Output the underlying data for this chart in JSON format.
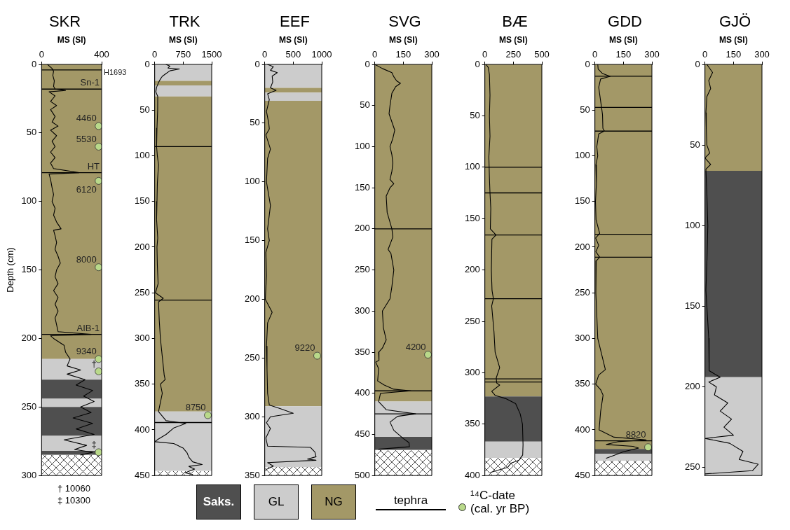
{
  "chart_data": [
    {
      "type": "line",
      "title": "SKR",
      "xlabel": "MS (SI)",
      "ylabel": "Depth (cm)",
      "xlim": [
        0,
        400
      ],
      "xticks": [
        0,
        400
      ],
      "ylim": [
        300,
        0
      ],
      "yticks": [
        0,
        50,
        100,
        150,
        200,
        250,
        300
      ],
      "bands": [
        {
          "axis": "y",
          "from": 0,
          "to": 215,
          "color": "#a39867"
        },
        {
          "axis": "y",
          "from": 215,
          "to": 230,
          "color": "#cccccc"
        },
        {
          "axis": "y",
          "from": 230,
          "to": 244,
          "color": "#4f4f4f"
        },
        {
          "axis": "y",
          "from": 244,
          "to": 250,
          "color": "#cccccc"
        },
        {
          "axis": "y",
          "from": 250,
          "to": 271,
          "color": "#4f4f4f"
        },
        {
          "axis": "y",
          "from": 271,
          "to": 282,
          "color": "#cccccc"
        },
        {
          "axis": "y",
          "from": 282,
          "to": 285,
          "color": "#4f4f4f"
        },
        {
          "axis": "y",
          "from": 285,
          "to": 300,
          "color": "#ffffff"
        }
      ],
      "ref_lines": [
        {
          "axis": "y",
          "value": 4,
          "label": "H1693"
        },
        {
          "axis": "y",
          "value": 18,
          "label": "Sn-1"
        },
        {
          "axis": "y",
          "value": 79,
          "label": "HT"
        },
        {
          "axis": "y",
          "value": 197,
          "label": "AIB-1"
        }
      ],
      "series": [
        {
          "type": "line",
          "color": "#000000",
          "x": [
            40,
            70,
            80,
            75,
            85,
            80,
            90,
            160,
            50,
            90,
            60,
            100,
            60,
            90,
            70,
            110,
            60,
            100,
            70,
            90,
            60,
            90,
            60,
            80,
            250,
            50,
            60,
            70,
            80,
            70,
            90,
            80,
            100,
            130,
            80,
            90,
            100,
            90,
            110,
            125,
            100,
            90,
            110,
            80,
            110,
            90,
            110,
            90,
            100,
            110,
            330,
            60,
            80,
            150,
            160,
            190,
            170,
            260,
            170,
            290,
            230,
            340,
            280,
            350,
            260,
            330,
            210,
            340,
            230,
            350,
            150,
            300,
            220,
            340,
            260
          ],
          "values": [
            0,
            3,
            5,
            8,
            12,
            16,
            18,
            19,
            20,
            23,
            27,
            30,
            33,
            38,
            42,
            45,
            48,
            52,
            56,
            60,
            64,
            68,
            72,
            76,
            79,
            80,
            84,
            90,
            95,
            100,
            105,
            110,
            115,
            120,
            121,
            125,
            130,
            135,
            140,
            145,
            150,
            155,
            160,
            165,
            170,
            175,
            180,
            185,
            190,
            195,
            197,
            198,
            200,
            205,
            210,
            215,
            220,
            223,
            226,
            230,
            234,
            238,
            242,
            246,
            250,
            254,
            258,
            262,
            266,
            270,
            274,
            278,
            281,
            283,
            285
          ]
        },
        {
          "type": "scatter",
          "color": "#b9d98a",
          "x": [
            380,
            380,
            380,
            380,
            380,
            380,
            380
          ],
          "values": [
            45,
            60,
            85,
            148,
            215,
            224,
            283
          ]
        }
      ],
      "annotations": [
        {
          "text": "4460",
          "x": 380,
          "y": 45
        },
        {
          "text": "5530",
          "x": 380,
          "y": 60
        },
        {
          "text": "6120",
          "x": 380,
          "y": 85
        },
        {
          "text": "8000",
          "x": 380,
          "y": 148
        },
        {
          "text": "9340",
          "x": 380,
          "y": 215
        },
        {
          "text": "†",
          "x": 380,
          "y": 224
        },
        {
          "text": "‡",
          "x": 380,
          "y": 283
        },
        "† 10060",
        "‡ 10300"
      ]
    },
    {
      "type": "line",
      "title": "TRK",
      "xlabel": "MS (SI)",
      "xlim": [
        0,
        1500
      ],
      "xticks": [
        0,
        750,
        1500
      ],
      "ylim": [
        450,
        0
      ],
      "yticks": [
        0,
        50,
        100,
        150,
        200,
        250,
        300,
        350,
        400,
        450
      ],
      "bands": [
        {
          "axis": "y",
          "from": 0,
          "to": 18,
          "color": "#cccccc"
        },
        {
          "axis": "y",
          "from": 18,
          "to": 23,
          "color": "#a39867"
        },
        {
          "axis": "y",
          "from": 23,
          "to": 35,
          "color": "#cccccc"
        },
        {
          "axis": "y",
          "from": 35,
          "to": 380,
          "color": "#a39867"
        },
        {
          "axis": "y",
          "from": 380,
          "to": 445,
          "color": "#cccccc"
        },
        {
          "axis": "y",
          "from": 445,
          "to": 450,
          "color": "#ffffff"
        }
      ],
      "ref_lines": [
        {
          "axis": "y",
          "value": 90
        },
        {
          "axis": "y",
          "value": 258
        },
        {
          "axis": "y",
          "value": 392
        }
      ],
      "series": [
        {
          "type": "line",
          "color": "#000000",
          "x": [
            300,
            400,
            350,
            650,
            400,
            300,
            200,
            150,
            100,
            50,
            30,
            80,
            78,
            60,
            50,
            70,
            100,
            70,
            60,
            50,
            80,
            60,
            70,
            90,
            20,
            225,
            100,
            120,
            150,
            200,
            250,
            275,
            150,
            200,
            150,
            100,
            300,
            820,
            500,
            300,
            100,
            0,
            500,
            750,
            850,
            900,
            1000,
            1250,
            900,
            1050,
            800,
            1000
          ],
          "values": [
            0,
            2,
            4,
            5,
            7,
            10,
            13,
            16,
            20,
            25,
            30,
            35,
            50,
            70,
            90,
            100,
            110,
            130,
            150,
            170,
            190,
            200,
            220,
            240,
            250,
            256,
            260,
            280,
            300,
            320,
            340,
            345,
            350,
            360,
            370,
            380,
            390,
            393,
            398,
            405,
            410,
            413,
            415,
            420,
            425,
            430,
            435,
            438,
            440,
            443,
            447,
            449
          ]
        },
        {
          "type": "scatter",
          "color": "#b9d98a",
          "x": [
            1400
          ],
          "values": [
            384
          ]
        }
      ],
      "annotations": [
        {
          "text": "8750",
          "x": 1400,
          "y": 384
        }
      ]
    },
    {
      "type": "line",
      "title": "EEF",
      "xlabel": "MS (SI)",
      "xlim": [
        0,
        1000
      ],
      "xticks": [
        0,
        500,
        1000
      ],
      "ylim": [
        350,
        0
      ],
      "yticks": [
        0,
        50,
        100,
        150,
        200,
        250,
        300,
        350
      ],
      "bands": [
        {
          "axis": "y",
          "from": 0,
          "to": 20,
          "color": "#cccccc"
        },
        {
          "axis": "y",
          "from": 20,
          "to": 24,
          "color": "#a39867"
        },
        {
          "axis": "y",
          "from": 24,
          "to": 31,
          "color": "#cccccc"
        },
        {
          "axis": "y",
          "from": 31,
          "to": 291,
          "color": "#a39867"
        },
        {
          "axis": "y",
          "from": 291,
          "to": 343,
          "color": "#cccccc"
        },
        {
          "axis": "y",
          "from": 343,
          "to": 350,
          "color": "#ffffff"
        }
      ],
      "series": [
        {
          "type": "line",
          "color": "#000000",
          "x": [
            50,
            150,
            100,
            220,
            130,
            140,
            100,
            200,
            50,
            80,
            30,
            70,
            80,
            20,
            100,
            50,
            30,
            100,
            50,
            80,
            20,
            30,
            10,
            130,
            50,
            30,
            40,
            50,
            80,
            267,
            500,
            100,
            30,
            100,
            20,
            50,
            800,
            880,
            900,
            750,
            900,
            50,
            150,
            20
          ],
          "values": [
            0,
            2,
            5,
            7,
            10,
            15,
            20,
            22,
            25,
            30,
            40,
            50,
            55,
            60,
            72,
            80,
            100,
            120,
            140,
            150,
            160,
            180,
            200,
            211,
            220,
            240,
            260,
            280,
            290,
            293,
            297,
            300,
            305,
            310,
            318,
            325,
            326,
            330,
            334,
            336,
            337,
            339,
            342,
            345
          ]
        },
        {
          "type": "scatter",
          "color": "#b9d98a",
          "x": [
            920
          ],
          "values": [
            248
          ]
        }
      ],
      "annotations": [
        {
          "text": "9220",
          "x": 920,
          "y": 248
        }
      ]
    },
    {
      "type": "line",
      "title": "SVG",
      "xlabel": "MS (SI)",
      "xlim": [
        0,
        300
      ],
      "xticks": [
        0,
        150,
        300
      ],
      "ylim": [
        500,
        0
      ],
      "yticks": [
        0,
        50,
        100,
        150,
        200,
        250,
        300,
        350,
        400,
        450,
        500
      ],
      "bands": [
        {
          "axis": "y",
          "from": 0,
          "to": 410,
          "color": "#a39867"
        },
        {
          "axis": "y",
          "from": 410,
          "to": 453,
          "color": "#cccccc"
        },
        {
          "axis": "y",
          "from": 453,
          "to": 469,
          "color": "#4f4f4f"
        },
        {
          "axis": "y",
          "from": 469,
          "to": 500,
          "color": "#ffffff"
        }
      ],
      "ref_lines": [
        {
          "axis": "y",
          "value": 200
        },
        {
          "axis": "y",
          "value": 397
        },
        {
          "axis": "y",
          "value": 425
        }
      ],
      "series": [
        {
          "type": "line",
          "color": "#000000",
          "x": [
            0,
            40,
            90,
            100,
            115,
            135,
            110,
            90,
            80,
            75,
            90,
            105,
            95,
            80,
            90,
            95,
            90,
            80,
            100,
            80,
            60,
            65,
            90,
            95,
            70,
            85,
            100,
            90,
            80,
            40,
            45,
            60,
            40,
            20,
            22,
            5,
            20,
            15,
            50,
            100,
            190,
            30,
            20,
            60,
            215,
            120,
            80,
            100,
            150,
            180,
            182,
            20
          ],
          "values": [
            0,
            5,
            10,
            15,
            20,
            23,
            27,
            35,
            50,
            60,
            70,
            80,
            90,
            100,
            110,
            120,
            130,
            140,
            145,
            150,
            160,
            180,
            200,
            210,
            225,
            230,
            250,
            270,
            285,
            300,
            320,
            335,
            345,
            350,
            360,
            362,
            370,
            385,
            390,
            395,
            397,
            400,
            410,
            420,
            425,
            428,
            435,
            445,
            455,
            460,
            465,
            468
          ]
        },
        {
          "type": "scatter",
          "color": "#b9d98a",
          "x": [
            280
          ],
          "values": [
            353
          ]
        }
      ],
      "annotations": [
        {
          "text": "4200",
          "x": 280,
          "y": 353
        }
      ]
    },
    {
      "type": "line",
      "title": "BÆ",
      "xlabel": "MS (SI)",
      "xlim": [
        0,
        500
      ],
      "xticks": [
        0,
        250,
        500
      ],
      "ylim": [
        400,
        0
      ],
      "yticks": [
        0,
        50,
        100,
        150,
        200,
        250,
        300,
        350,
        400
      ],
      "bands": [
        {
          "axis": "y",
          "from": 0,
          "to": 323,
          "color": "#a39867"
        },
        {
          "axis": "y",
          "from": 323,
          "to": 367,
          "color": "#4f4f4f"
        },
        {
          "axis": "y",
          "from": 367,
          "to": 383,
          "color": "#cccccc"
        },
        {
          "axis": "y",
          "from": 383,
          "to": 400,
          "color": "#ffffff"
        }
      ],
      "ref_lines": [
        {
          "axis": "y",
          "value": 100
        },
        {
          "axis": "y",
          "value": 125
        },
        {
          "axis": "y",
          "value": 166
        },
        {
          "axis": "y",
          "value": 228
        },
        {
          "axis": "y",
          "value": 306
        },
        {
          "axis": "y",
          "value": 309
        }
      ],
      "series": [
        {
          "type": "line",
          "color": "#000000",
          "x": [
            10,
            30,
            40,
            45,
            40,
            45,
            35,
            40,
            45,
            52,
            48,
            98,
            62,
            57,
            63,
            75,
            60,
            80,
            90,
            130,
            100,
            104,
            130,
            60,
            90,
            180,
            270,
            310,
            330,
            335,
            332,
            300,
            230,
            200,
            50
          ],
          "values": [
            0,
            3,
            10,
            30,
            50,
            70,
            90,
            110,
            125,
            140,
            160,
            166,
            170,
            200,
            220,
            228,
            235,
            260,
            280,
            295,
            305,
            310,
            312,
            318,
            322,
            325,
            330,
            340,
            350,
            370,
            380,
            385,
            388,
            392,
            397
          ]
        }
      ]
    },
    {
      "type": "line",
      "title": "GDD",
      "xlabel": "MS (SI)",
      "xlim": [
        0,
        300
      ],
      "xticks": [
        0,
        150,
        300
      ],
      "ylim": [
        450,
        0
      ],
      "yticks": [
        0,
        50,
        100,
        150,
        200,
        250,
        300,
        350,
        400,
        450
      ],
      "bands": [
        {
          "axis": "y",
          "from": 0,
          "to": 421,
          "color": "#a39867"
        },
        {
          "axis": "y",
          "from": 421,
          "to": 426,
          "color": "#4f4f4f"
        },
        {
          "axis": "y",
          "from": 426,
          "to": 434,
          "color": "#cccccc"
        },
        {
          "axis": "y",
          "from": 434,
          "to": 450,
          "color": "#ffffff"
        }
      ],
      "ref_lines": [
        {
          "axis": "y",
          "value": 13
        },
        {
          "axis": "y",
          "value": 47
        },
        {
          "axis": "y",
          "value": 73
        },
        {
          "axis": "y",
          "value": 186
        },
        {
          "axis": "y",
          "value": 211
        },
        {
          "axis": "y",
          "value": 412
        }
      ],
      "series": [
        {
          "type": "line",
          "color": "#000000",
          "x": [
            15,
            17,
            40,
            80,
            30,
            20,
            30,
            35,
            40,
            42,
            50,
            20,
            10,
            15,
            5,
            8,
            3,
            6,
            25,
            4,
            20,
            5,
            25,
            7,
            5,
            15,
            55,
            20,
            4,
            30,
            43,
            30,
            22,
            100,
            270,
            120,
            60,
            200,
            230,
            150,
            100,
            60
          ],
          "values": [
            0,
            5,
            10,
            13,
            16,
            25,
            40,
            47,
            55,
            70,
            73,
            76,
            90,
            100,
            110,
            130,
            150,
            170,
            185,
            190,
            198,
            205,
            211,
            215,
            250,
            300,
            334,
            340,
            350,
            356,
            362,
            380,
            400,
            408,
            411,
            413,
            416,
            418,
            420,
            424,
            428,
            431
          ]
        },
        {
          "type": "scatter",
          "color": "#b9d98a",
          "x": [
            280
          ],
          "values": [
            419
          ]
        }
      ],
      "annotations": [
        {
          "text": "8820",
          "x": 280,
          "y": 419
        }
      ]
    },
    {
      "type": "line",
      "title": "GJÖ",
      "xlabel": "MS (SI)",
      "xlim": [
        0,
        300
      ],
      "xticks": [
        0,
        150,
        300
      ],
      "ylim": [
        255,
        0
      ],
      "yticks": [
        0,
        50,
        100,
        150,
        200,
        250
      ],
      "bands": [
        {
          "axis": "y",
          "from": 0,
          "to": 66,
          "color": "#a39867"
        },
        {
          "axis": "y",
          "from": 66,
          "to": 194,
          "color": "#4f4f4f"
        },
        {
          "axis": "y",
          "from": 194,
          "to": 255,
          "color": "#cccccc"
        }
      ],
      "series": [
        {
          "type": "line",
          "color": "#000000",
          "x": [
            10,
            40,
            20,
            30,
            10,
            5,
            7,
            10,
            25,
            0,
            30,
            5,
            10,
            15,
            11,
            5,
            10,
            20,
            22,
            80,
            20,
            60,
            50,
            120,
            80,
            140,
            100,
            150,
            0,
            130,
            200,
            180,
            280,
            250,
            0
          ],
          "values": [
            0,
            5,
            10,
            15,
            20,
            30,
            40,
            50,
            55,
            58,
            62,
            65,
            80,
            100,
            120,
            140,
            150,
            170,
            190,
            194,
            197,
            200,
            205,
            210,
            215,
            220,
            225,
            230,
            232,
            235,
            240,
            245,
            248,
            252,
            254
          ]
        }
      ]
    },
    {
      "type": "other",
      "categories": [
        "Saks.",
        "GL",
        "NG"
      ],
      "colors": [
        "#4f4f4f",
        "#cccccc",
        "#a39867"
      ],
      "annotations": [
        "tephra",
        "¹⁴C-date (cal. yr BP)"
      ]
    }
  ]
}
